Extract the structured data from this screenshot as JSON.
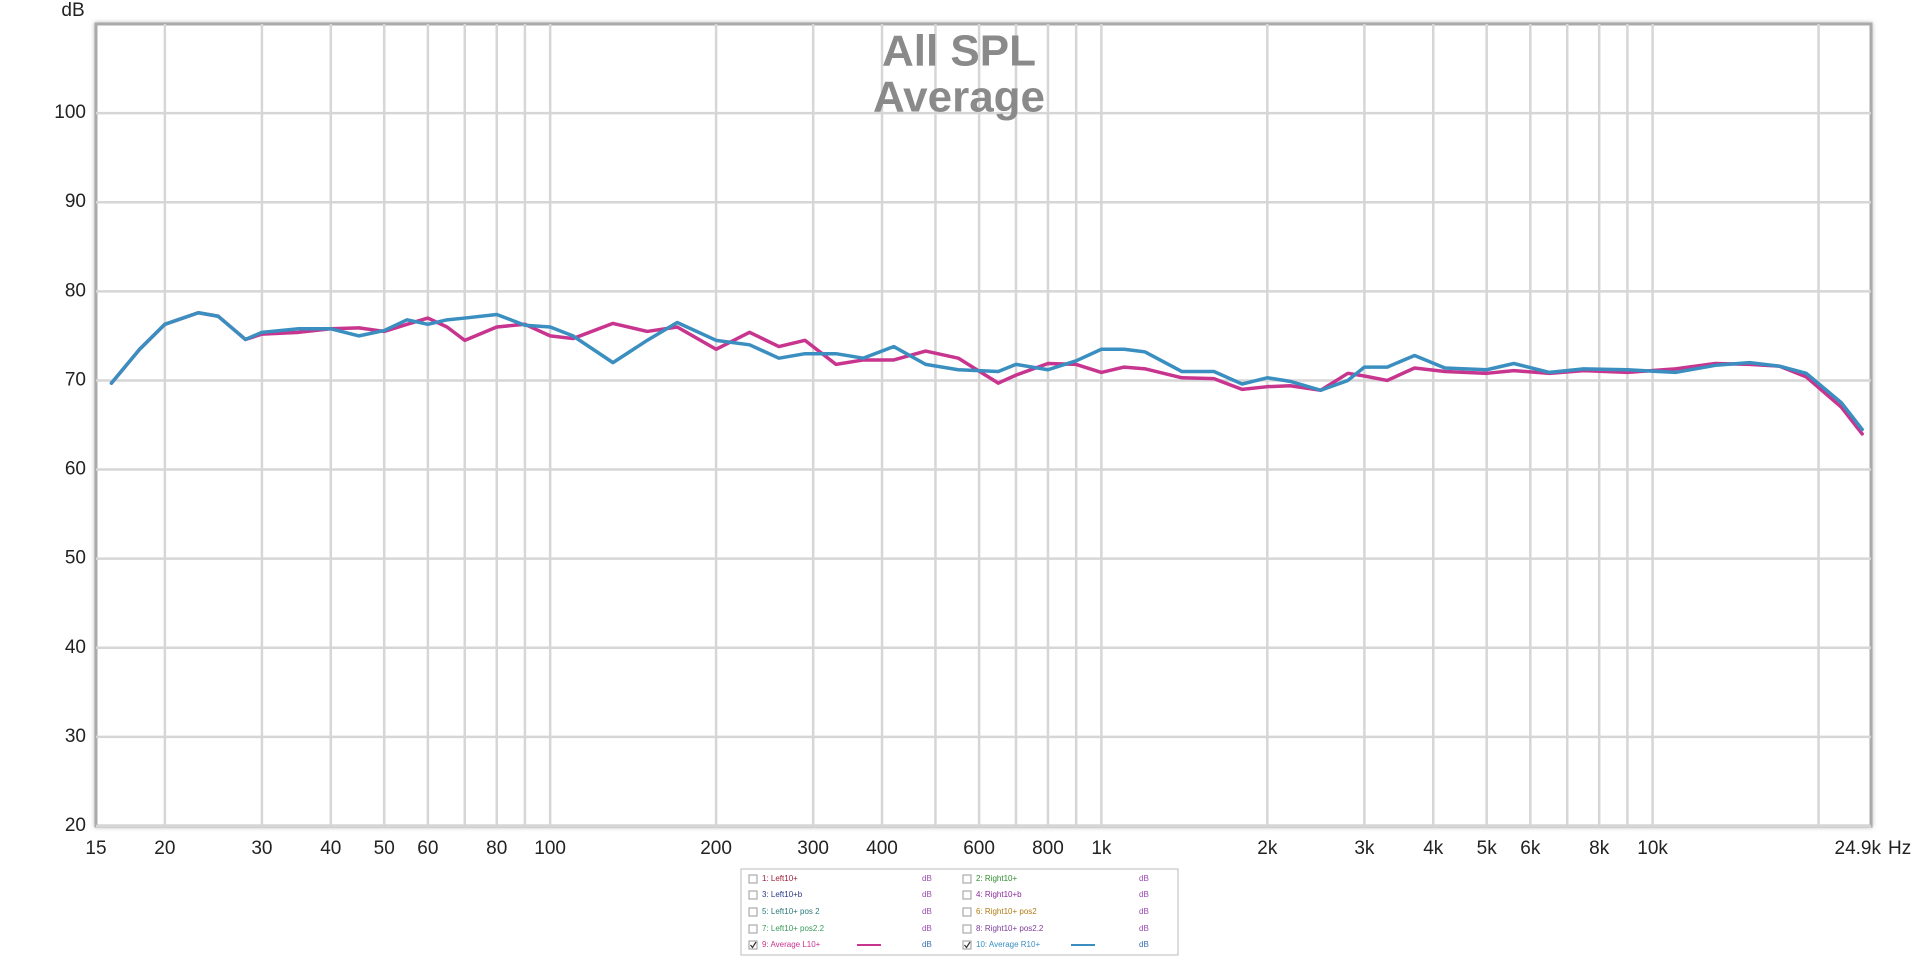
{
  "chart_data": {
    "type": "line",
    "title": "All SPL",
    "subtitle": "Average",
    "y_label": "dB",
    "x_label": "Hz",
    "log_x": true,
    "grid": true,
    "xlim": [
      15,
      24900
    ],
    "ylim": [
      20,
      110
    ],
    "yticks": [
      20,
      30,
      40,
      50,
      60,
      70,
      80,
      90,
      100
    ],
    "xticks": [
      15,
      20,
      30,
      40,
      50,
      60,
      80,
      100,
      200,
      300,
      400,
      600,
      800,
      {
        "value": 1000,
        "label": "1k"
      },
      {
        "value": 2000,
        "label": "2k"
      },
      {
        "value": 3000,
        "label": "3k"
      },
      {
        "value": 4000,
        "label": "4k"
      },
      {
        "value": 5000,
        "label": "5k"
      },
      {
        "value": 6000,
        "label": "6k"
      },
      {
        "value": 8000,
        "label": "8k"
      },
      {
        "value": 10000,
        "label": "10k"
      },
      {
        "value": 24900,
        "label": "24.9k"
      }
    ],
    "xminor_ticks": [
      70,
      90,
      500,
      700,
      900,
      7000,
      9000,
      20000
    ],
    "x": [
      16,
      18,
      20,
      23,
      25,
      28,
      30,
      35,
      40,
      45,
      50,
      55,
      60,
      65,
      70,
      80,
      90,
      100,
      110,
      130,
      150,
      170,
      200,
      230,
      260,
      290,
      330,
      370,
      420,
      480,
      550,
      650,
      700,
      800,
      900,
      1000,
      1100,
      1200,
      1400,
      1600,
      1800,
      2000,
      2200,
      2500,
      2800,
      3000,
      3300,
      3700,
      4200,
      5000,
      5600,
      6500,
      7500,
      9000,
      11000,
      13000,
      15000,
      17000,
      19000,
      22000,
      24000
    ],
    "series": [
      {
        "name": "9: Average L10+",
        "color": "#c8358f",
        "unit": "dB",
        "checked": true,
        "values": [
          69.7,
          73.5,
          76.3,
          77.6,
          77.2,
          74.6,
          75.2,
          75.4,
          75.8,
          75.9,
          75.5,
          76.3,
          77.0,
          76.0,
          74.5,
          76.0,
          76.3,
          75.0,
          74.7,
          76.4,
          75.5,
          76.0,
          73.5,
          75.4,
          73.8,
          74.5,
          71.8,
          72.3,
          72.3,
          73.3,
          72.5,
          69.7,
          70.6,
          71.9,
          71.8,
          70.9,
          71.5,
          71.3,
          70.3,
          70.2,
          69.0,
          69.3,
          69.4,
          68.9,
          70.8,
          70.5,
          70.0,
          71.4,
          71.0,
          70.8,
          71.1,
          70.8,
          71.1,
          70.9,
          71.3,
          71.9,
          71.8,
          71.6,
          70.4,
          67.0,
          64.0
        ]
      },
      {
        "name": "10: Average R10+",
        "color": "#3a8fc0",
        "unit": "dB",
        "checked": true,
        "values": [
          69.7,
          73.5,
          76.3,
          77.6,
          77.2,
          74.6,
          75.4,
          75.8,
          75.8,
          75.0,
          75.6,
          76.8,
          76.3,
          76.8,
          77.0,
          77.4,
          76.2,
          76.0,
          75.0,
          72.0,
          74.5,
          76.5,
          74.5,
          74.0,
          72.5,
          73.0,
          73.0,
          72.5,
          73.8,
          71.8,
          71.2,
          71.0,
          71.8,
          71.2,
          72.2,
          73.5,
          73.5,
          73.2,
          71.0,
          71.0,
          69.6,
          70.3,
          69.9,
          68.9,
          70.0,
          71.5,
          71.5,
          72.8,
          71.4,
          71.2,
          71.9,
          70.9,
          71.3,
          71.2,
          70.9,
          71.7,
          72.0,
          71.6,
          70.8,
          67.5,
          64.5
        ]
      }
    ],
    "legend_items": [
      {
        "name": "1: Left10+",
        "color": "#a0203a",
        "unit": "dB",
        "checked": false
      },
      {
        "name": "2: Right10+",
        "color": "#2e8b2e",
        "unit": "dB",
        "checked": false
      },
      {
        "name": "3: Left10+b",
        "color": "#2a3a8a",
        "unit": "dB",
        "checked": false
      },
      {
        "name": "4: Right10+b",
        "color": "#8a2a9a",
        "unit": "dB",
        "checked": false
      },
      {
        "name": "5: Left10+ pos 2",
        "color": "#2a7a7a",
        "unit": "dB",
        "checked": false
      },
      {
        "name": "6: Right10+ pos2",
        "color": "#b07a10",
        "unit": "dB",
        "checked": false
      },
      {
        "name": "7: Left10+ pos2.2",
        "color": "#3a9a5a",
        "unit": "dB",
        "checked": false
      },
      {
        "name": "8: Right10+ pos2.2",
        "color": "#7a3a9a",
        "unit": "dB",
        "checked": false
      }
    ]
  }
}
